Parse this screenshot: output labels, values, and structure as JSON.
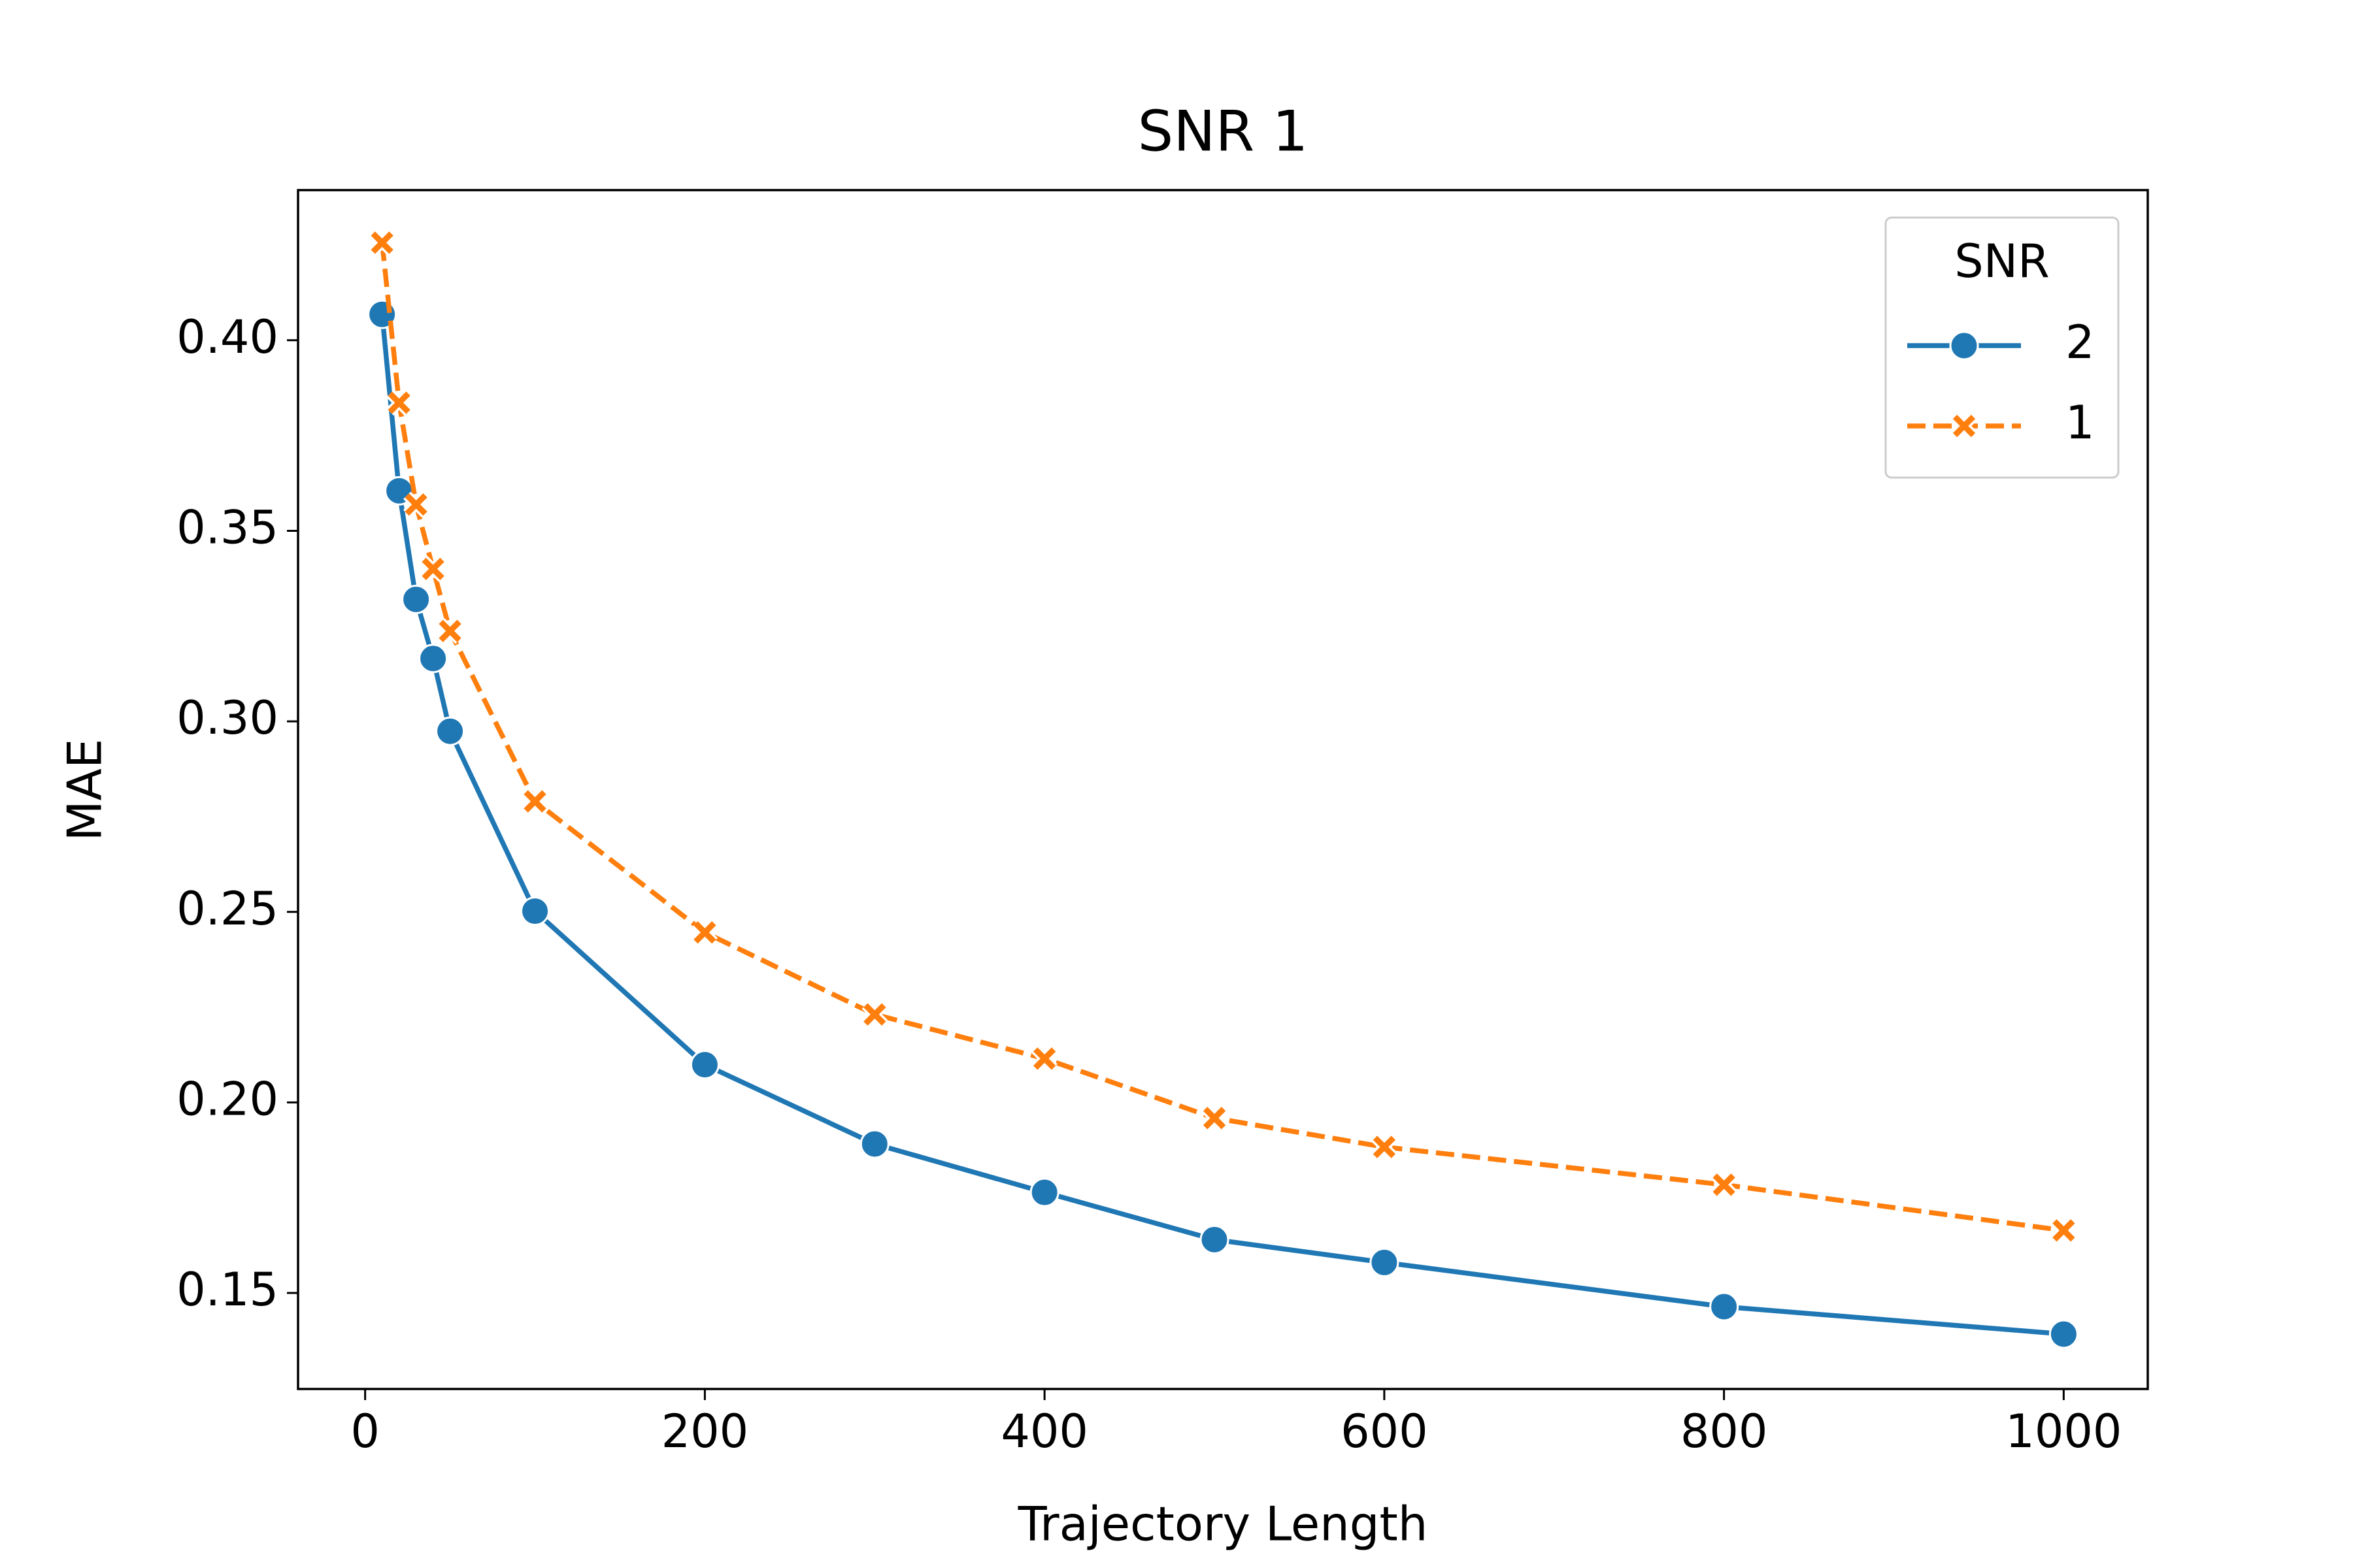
{
  "chart_data": {
    "type": "line",
    "title": "SNR 1",
    "x_label": "Trajectory Length",
    "y_label": "MAE",
    "x": [
      10,
      20,
      30,
      40,
      50,
      100,
      200,
      300,
      400,
      500,
      600,
      800,
      1000
    ],
    "series": [
      {
        "name": "2",
        "color": "#1f77b4",
        "marker": "circle",
        "linestyle": "solid",
        "values": [
          0.4068,
          0.3605,
          0.332,
          0.3165,
          0.2974,
          0.2502,
          0.2099,
          0.1891,
          0.1764,
          0.164,
          0.158,
          0.1464,
          0.1392
        ]
      },
      {
        "name": "1",
        "color": "#ff7f0e",
        "marker": "x",
        "linestyle": "dashed",
        "values": [
          0.4256,
          0.3836,
          0.3569,
          0.34,
          0.3237,
          0.279,
          0.2446,
          0.2231,
          0.2115,
          0.1959,
          0.1883,
          0.1784,
          0.1664
        ]
      }
    ],
    "legend_title": "SNR",
    "legend": "upper right",
    "xlim": [
      -39.5,
      1049.5
    ],
    "ylim": [
      0.1248,
      0.4394
    ],
    "xticks": [
      0,
      200,
      400,
      600,
      800,
      1000
    ],
    "yticks": [
      {
        "value": 0.15,
        "label": "0.15"
      },
      {
        "value": 0.2,
        "label": "0.20"
      },
      0.25,
      {
        "value": 0.3,
        "label": "0.30"
      },
      0.35,
      {
        "value": 0.4,
        "label": "0.40"
      }
    ],
    "grid": false
  }
}
